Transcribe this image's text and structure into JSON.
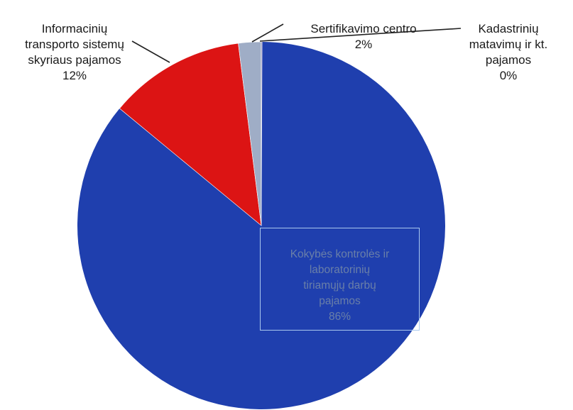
{
  "chart_data": {
    "type": "pie",
    "title": "",
    "slices": [
      {
        "label": "Kokybės kontrolės ir laboratorinių tiriamųjų darbų pajamos",
        "value": 86,
        "value_label": "86%",
        "color": "#1f3fae"
      },
      {
        "label": "Informacinių transporto sistemų skyriaus pajamos",
        "value": 12,
        "value_label": "12%",
        "color": "#dc1414"
      },
      {
        "label": "Sertifikavimo centro",
        "value": 2,
        "value_label": "2%",
        "color": "#9fadc6"
      },
      {
        "label": "Kadastrinių matavimų ir kt. pajamos",
        "value": 0,
        "value_label": "0%",
        "color": "#6a5a9a"
      }
    ]
  },
  "labels": {
    "main": {
      "text": "Kokybės kontrolės ir\nlaboratorinių\ntiriamųjų darbų\npajamos",
      "pct": "86%"
    },
    "its": {
      "text": "Informacinių\ntransporto sistemų\nskyriaus pajamos",
      "pct": "12%"
    },
    "cert": {
      "text": "Sertifikavimo centro",
      "pct": "2%"
    },
    "cad": {
      "text": "Kadastrinių\nmatavimų ir kt.\npajamos",
      "pct": "0%"
    }
  }
}
